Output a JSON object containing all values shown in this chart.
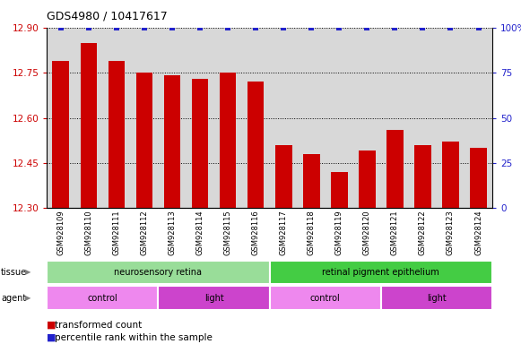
{
  "title": "GDS4980 / 10417617",
  "samples": [
    "GSM928109",
    "GSM928110",
    "GSM928111",
    "GSM928112",
    "GSM928113",
    "GSM928114",
    "GSM928115",
    "GSM928116",
    "GSM928117",
    "GSM928118",
    "GSM928119",
    "GSM928120",
    "GSM928121",
    "GSM928122",
    "GSM928123",
    "GSM928124"
  ],
  "transformed_count": [
    12.79,
    12.85,
    12.79,
    12.75,
    12.74,
    12.73,
    12.75,
    12.72,
    12.51,
    12.48,
    12.42,
    12.49,
    12.56,
    12.51,
    12.52,
    12.5
  ],
  "percentile_rank": [
    100,
    100,
    100,
    100,
    100,
    100,
    100,
    100,
    100,
    100,
    100,
    100,
    100,
    100,
    100,
    100
  ],
  "ylim_left": [
    12.3,
    12.9
  ],
  "ylim_right": [
    0,
    100
  ],
  "yticks_left": [
    12.3,
    12.45,
    12.6,
    12.75,
    12.9
  ],
  "yticks_right": [
    0,
    25,
    50,
    75,
    100
  ],
  "bar_color": "#cc0000",
  "dot_color": "#2222cc",
  "grid_color": "#000000",
  "tissue_labels": [
    {
      "text": "neurosensory retina",
      "start": 0,
      "end": 7,
      "color": "#99dd99"
    },
    {
      "text": "retinal pigment epithelium",
      "start": 8,
      "end": 15,
      "color": "#44cc44"
    }
  ],
  "agent_labels": [
    {
      "text": "control",
      "start": 0,
      "end": 3,
      "color": "#ee88ee"
    },
    {
      "text": "light",
      "start": 4,
      "end": 7,
      "color": "#cc44cc"
    },
    {
      "text": "control",
      "start": 8,
      "end": 11,
      "color": "#ee88ee"
    },
    {
      "text": "light",
      "start": 12,
      "end": 15,
      "color": "#cc44cc"
    }
  ],
  "xlabel_color": "#cc0000",
  "ylabel_right_color": "#2222cc",
  "background_color": "#ffffff",
  "plot_area_color": "#d8d8d8"
}
